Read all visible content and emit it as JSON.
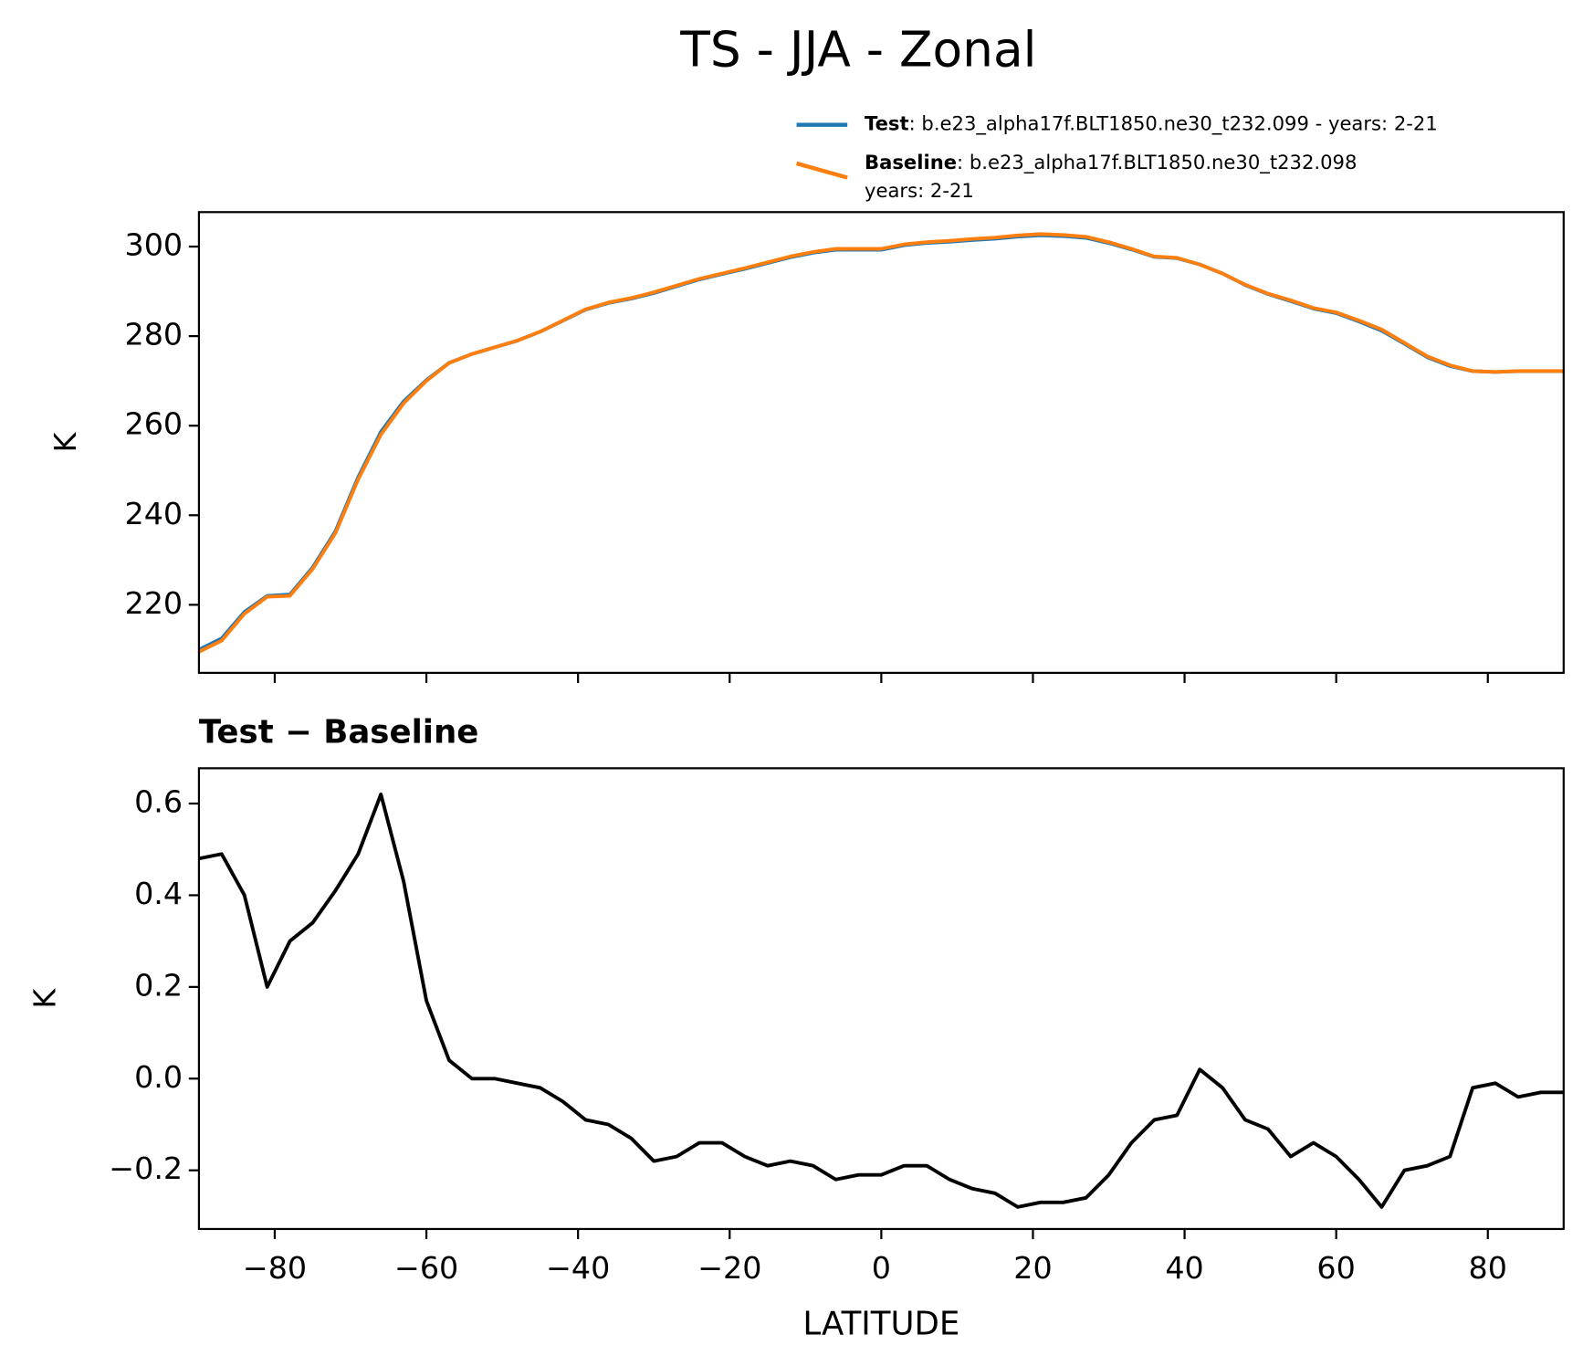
{
  "chart_data": [
    {
      "type": "line",
      "title": "TS - JJA - Zonal",
      "ylabel": "K",
      "x": [
        -90,
        -87,
        -84,
        -81,
        -78,
        -75,
        -72,
        -69,
        -66,
        -63,
        -60,
        -57,
        -54,
        -51,
        -48,
        -45,
        -42,
        -39,
        -36,
        -33,
        -30,
        -27,
        -24,
        -21,
        -18,
        -15,
        -12,
        -9,
        -6,
        -3,
        0,
        3,
        6,
        9,
        12,
        15,
        18,
        21,
        24,
        27,
        30,
        33,
        36,
        39,
        42,
        45,
        48,
        51,
        54,
        57,
        60,
        63,
        66,
        69,
        72,
        75,
        78,
        81,
        84,
        87,
        90
      ],
      "series": [
        {
          "name": "Test",
          "detail": [
            ": b.e23_alpha17f.BLT1850.ne30_t232.099 - years: 2-21"
          ],
          "color": "#1f77b4",
          "values": [
            209.98,
            212.49,
            218.4,
            222.0,
            222.3,
            228.34,
            236.41,
            248.49,
            258.62,
            265.43,
            270.17,
            274.04,
            276.0,
            277.5,
            278.99,
            280.98,
            283.45,
            285.91,
            287.4,
            288.37,
            289.62,
            291.13,
            292.66,
            293.86,
            295.03,
            296.31,
            297.62,
            298.61,
            299.28,
            299.29,
            299.29,
            300.31,
            300.81,
            301.08,
            301.46,
            301.75,
            302.22,
            302.53,
            302.33,
            301.94,
            300.79,
            299.36,
            297.71,
            297.42,
            296.02,
            293.98,
            291.41,
            289.39,
            287.83,
            286.16,
            285.13,
            283.28,
            281.22,
            278.3,
            275.31,
            273.33,
            272.18,
            271.99,
            272.16,
            272.17,
            272.17
          ]
        },
        {
          "name": "Baseline",
          "detail": [
            ": b.e23_alpha17f.BLT1850.ne30_t232.098",
            "years: 2-21"
          ],
          "color": "#ff7f0e",
          "values": [
            209.5,
            212,
            218,
            221.8,
            222,
            228,
            236,
            248,
            258,
            265,
            270,
            274,
            276,
            277.5,
            279,
            281,
            283.5,
            286,
            287.5,
            288.5,
            289.8,
            291.3,
            292.8,
            294,
            295.2,
            296.5,
            297.8,
            298.8,
            299.5,
            299.5,
            299.5,
            300.5,
            301,
            301.3,
            301.7,
            302,
            302.5,
            302.8,
            302.6,
            302.2,
            301,
            299.5,
            297.8,
            297.5,
            296,
            294,
            291.5,
            289.5,
            288,
            286.3,
            285.3,
            283.5,
            281.5,
            278.5,
            275.5,
            273.5,
            272.2,
            272,
            272.2,
            272.2,
            272.2
          ]
        }
      ],
      "xlim": [
        -90,
        90
      ],
      "xticks": [
        -80,
        -60,
        -40,
        -20,
        0,
        20,
        40,
        60,
        80
      ],
      "xtick_labels": false,
      "ylim": [
        204.8,
        307.7
      ],
      "yticks": [
        220,
        240,
        260,
        280,
        300
      ]
    },
    {
      "type": "line",
      "title": "Test − Baseline",
      "ylabel": "K",
      "xlabel": "LATITUDE",
      "x": [
        -90,
        -87,
        -84,
        -81,
        -78,
        -75,
        -72,
        -69,
        -66,
        -63,
        -60,
        -57,
        -54,
        -51,
        -48,
        -45,
        -42,
        -39,
        -36,
        -33,
        -30,
        -27,
        -24,
        -21,
        -18,
        -15,
        -12,
        -9,
        -6,
        -3,
        0,
        3,
        6,
        9,
        12,
        15,
        18,
        21,
        24,
        27,
        30,
        33,
        36,
        39,
        42,
        45,
        48,
        51,
        54,
        57,
        60,
        63,
        66,
        69,
        72,
        75,
        78,
        81,
        84,
        87,
        90
      ],
      "series": [
        {
          "color": "#000000",
          "values": [
            0.48,
            0.49,
            0.4,
            0.2,
            0.3,
            0.34,
            0.41,
            0.49,
            0.62,
            0.43,
            0.17,
            0.04,
            0,
            0,
            -0.01,
            -0.02,
            -0.05,
            -0.09,
            -0.1,
            -0.13,
            -0.18,
            -0.17,
            -0.14,
            -0.14,
            -0.17,
            -0.19,
            -0.18,
            -0.19,
            -0.22,
            -0.21,
            -0.21,
            -0.19,
            -0.19,
            -0.22,
            -0.24,
            -0.25,
            -0.28,
            -0.27,
            -0.27,
            -0.26,
            -0.21,
            -0.14,
            -0.09,
            -0.08,
            0.02,
            -0.02,
            -0.09,
            -0.11,
            -0.17,
            -0.14,
            -0.17,
            -0.22,
            -0.28,
            -0.2,
            -0.19,
            -0.17,
            -0.02,
            -0.01,
            -0.04,
            -0.03,
            -0.03
          ]
        }
      ],
      "xlim": [
        -90,
        90
      ],
      "xticks": [
        {
          "value": -80,
          "label": "−80"
        },
        {
          "value": -60,
          "label": "−60"
        },
        {
          "value": -40,
          "label": "−40"
        },
        {
          "value": -20,
          "label": "−20"
        },
        0,
        20,
        40,
        60,
        80
      ],
      "ylim": [
        -0.328,
        0.677
      ],
      "yticks": [
        {
          "value": -0.2,
          "label": "−0.2"
        },
        {
          "value": 0,
          "label": "0.0"
        },
        0.2,
        0.4,
        0.6
      ]
    }
  ]
}
